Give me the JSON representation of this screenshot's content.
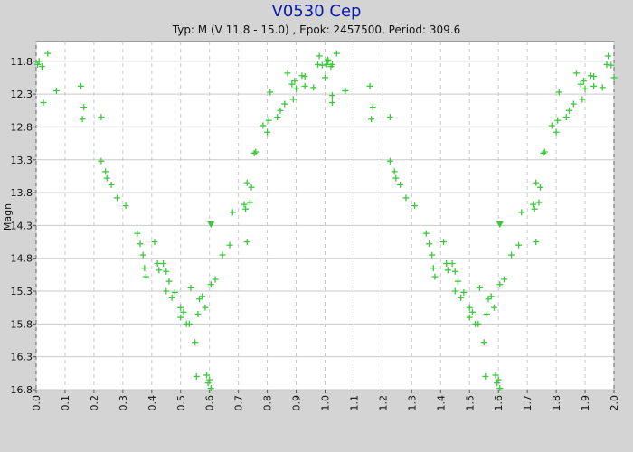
{
  "chart_data": {
    "type": "scatter",
    "title": "V0530 Cep",
    "subtitle": "Typ: M (V 11.8 - 15.0) , Epok: 2457500, Period: 309.6",
    "ylabel": "Magn",
    "xlim": [
      0.0,
      2.0
    ],
    "ylim": [
      11.5,
      16.8
    ],
    "y_inverted": true,
    "x_ticks": [
      "0.0",
      "0.1",
      "0.2",
      "0.3",
      "0.4",
      "0.5",
      "0.6",
      "0.7",
      "0.8",
      "0.9",
      "1.0",
      "1.1",
      "1.2",
      "1.3",
      "1.4",
      "1.5",
      "1.6",
      "1.7",
      "1.8",
      "1.9",
      "2.0"
    ],
    "y_ticks": [
      "11.8",
      "12.3",
      "12.8",
      "13.3",
      "13.8",
      "14.3",
      "14.8",
      "15.3",
      "15.8",
      "16.3",
      "16.8"
    ],
    "grid": true,
    "marker_color": "#3cc83c",
    "series": [
      {
        "marker": "plus",
        "points": [
          [
            0.005,
            11.85
          ],
          [
            0.01,
            11.8
          ],
          [
            0.02,
            11.88
          ],
          [
            0.025,
            12.43
          ],
          [
            0.04,
            11.68
          ],
          [
            0.07,
            12.25
          ],
          [
            0.155,
            12.18
          ],
          [
            0.16,
            12.68
          ],
          [
            0.165,
            12.5
          ],
          [
            0.225,
            12.65
          ],
          [
            0.225,
            13.32
          ],
          [
            0.24,
            13.48
          ],
          [
            0.245,
            13.58
          ],
          [
            0.26,
            13.68
          ],
          [
            0.28,
            13.88
          ],
          [
            0.31,
            14.0
          ],
          [
            0.35,
            14.42
          ],
          [
            0.36,
            14.58
          ],
          [
            0.37,
            14.75
          ],
          [
            0.375,
            14.95
          ],
          [
            0.38,
            15.08
          ],
          [
            0.41,
            14.55
          ],
          [
            0.42,
            14.88
          ],
          [
            0.425,
            14.98
          ],
          [
            0.44,
            14.88
          ],
          [
            0.45,
            15.0
          ],
          [
            0.45,
            15.3
          ],
          [
            0.46,
            15.15
          ],
          [
            0.47,
            15.4
          ],
          [
            0.48,
            15.32
          ],
          [
            0.5,
            15.55
          ],
          [
            0.5,
            15.7
          ],
          [
            0.51,
            15.62
          ],
          [
            0.52,
            15.8
          ],
          [
            0.53,
            15.8
          ],
          [
            0.535,
            15.25
          ],
          [
            0.55,
            16.08
          ],
          [
            0.555,
            16.6
          ],
          [
            0.56,
            15.65
          ],
          [
            0.565,
            15.42
          ],
          [
            0.575,
            15.38
          ],
          [
            0.585,
            15.55
          ],
          [
            0.59,
            16.58
          ],
          [
            0.595,
            16.7
          ],
          [
            0.6,
            16.65
          ],
          [
            0.605,
            16.78
          ],
          [
            0.605,
            15.2
          ],
          [
            0.62,
            15.12
          ],
          [
            0.645,
            14.75
          ],
          [
            0.67,
            14.6
          ],
          [
            0.68,
            14.1
          ],
          [
            0.72,
            13.98
          ],
          [
            0.725,
            14.05
          ],
          [
            0.73,
            14.55
          ],
          [
            0.73,
            13.65
          ],
          [
            0.74,
            13.95
          ],
          [
            0.745,
            13.72
          ],
          [
            0.755,
            13.2
          ],
          [
            0.76,
            13.18
          ],
          [
            0.785,
            12.78
          ],
          [
            0.8,
            12.88
          ],
          [
            0.805,
            12.7
          ],
          [
            0.81,
            12.27
          ],
          [
            0.835,
            12.65
          ],
          [
            0.845,
            12.55
          ],
          [
            0.86,
            12.45
          ],
          [
            0.87,
            11.98
          ],
          [
            0.885,
            12.15
          ],
          [
            0.89,
            12.38
          ],
          [
            0.895,
            12.1
          ],
          [
            0.9,
            12.22
          ],
          [
            0.92,
            12.02
          ],
          [
            0.93,
            12.03
          ],
          [
            0.93,
            12.18
          ],
          [
            0.96,
            12.2
          ],
          [
            0.975,
            11.85
          ],
          [
            0.98,
            11.72
          ],
          [
            0.99,
            11.86
          ],
          [
            1.0,
            12.05
          ],
          [
            1.005,
            11.8
          ],
          [
            1.01,
            11.78
          ],
          [
            1.025,
            12.32
          ],
          [
            1.025,
            11.85
          ],
          [
            1.07,
            12.25
          ]
        ]
      },
      {
        "marker": "triangle-down",
        "points": [
          [
            0.605,
            14.28
          ]
        ]
      }
    ]
  }
}
